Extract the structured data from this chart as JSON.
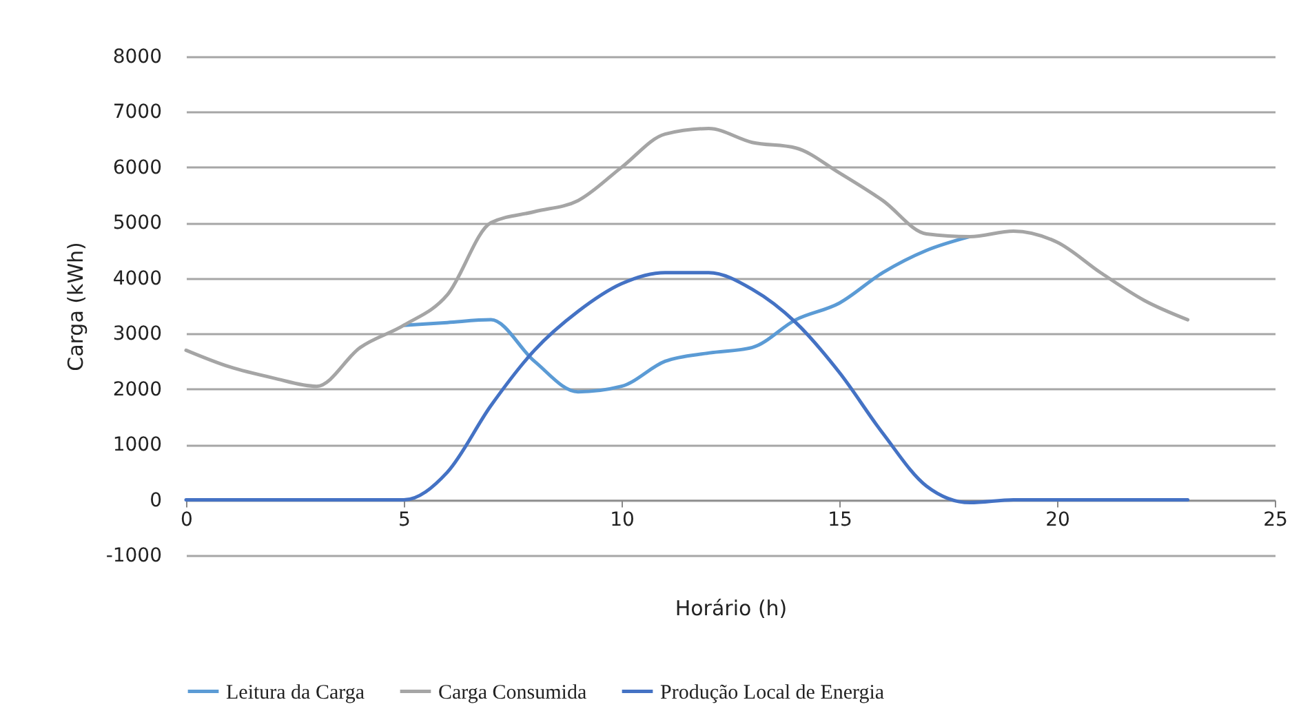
{
  "chart_data": {
    "type": "line",
    "xlabel": "Horário (h)",
    "ylabel": "Carga (kWh)",
    "x": [
      0,
      1,
      2,
      3,
      4,
      5,
      6,
      7,
      8,
      9,
      10,
      11,
      12,
      13,
      14,
      15,
      16,
      17,
      18,
      19,
      20,
      21,
      22,
      23
    ],
    "series": [
      {
        "name": "Leitura da Carga",
        "color": "#5b9bd5",
        "values": [
          null,
          null,
          null,
          null,
          null,
          3150,
          3200,
          3250,
          2500,
          1950,
          2050,
          2500,
          2650,
          2750,
          3250,
          3550,
          4100,
          4500,
          4750,
          null,
          null,
          null,
          null,
          null
        ]
      },
      {
        "name": "Carga Consumida",
        "color": "#a5a5a5",
        "values": [
          2700,
          2400,
          2200,
          2050,
          2750,
          3150,
          3700,
          5000,
          5200,
          5400,
          6000,
          6600,
          6700,
          6450,
          6350,
          5900,
          5400,
          4800,
          4750,
          4850,
          4650,
          4100,
          3600,
          3250
        ]
      },
      {
        "name": "Produção Local de Energia",
        "color": "#4472c4",
        "values": [
          0,
          0,
          0,
          0,
          0,
          0,
          500,
          1700,
          2700,
          3400,
          3900,
          4100,
          4100,
          3800,
          3200,
          2300,
          1200,
          250,
          -50,
          0,
          0,
          0,
          0,
          0
        ]
      }
    ],
    "xlim": [
      0,
      25
    ],
    "xticks": [
      0,
      5,
      10,
      15,
      20,
      25
    ],
    "ylim": [
      -1000,
      8000
    ],
    "yticks": [
      -1000,
      0,
      1000,
      2000,
      3000,
      4000,
      5000,
      6000,
      7000,
      8000
    ],
    "grid": "y",
    "legend": "bottom"
  }
}
